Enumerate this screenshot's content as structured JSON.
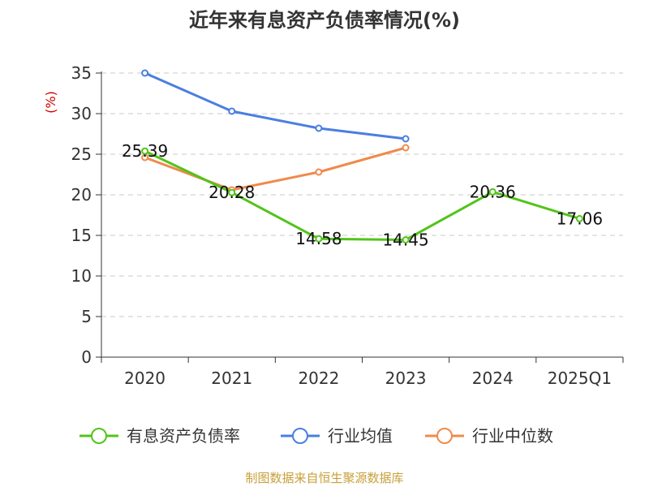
{
  "chart_data": {
    "type": "line",
    "title": "近年来有息资产负债率情况(%)",
    "ylabel": "(%)",
    "xlabel": "",
    "categories": [
      "2020",
      "2021",
      "2022",
      "2023",
      "2024",
      "2025Q1"
    ],
    "ylim": [
      0,
      35
    ],
    "yticks": [
      0,
      5,
      10,
      15,
      20,
      25,
      30,
      35
    ],
    "grid": true,
    "legend_position": "bottom",
    "series": [
      {
        "name": "有息资产负债率",
        "color": "#52c41a",
        "values": [
          25.39,
          20.28,
          14.58,
          14.45,
          20.36,
          17.06
        ],
        "data_labels": [
          "25.39",
          "20.28",
          "14.58",
          "14.45",
          "20.36",
          "17.06"
        ]
      },
      {
        "name": "行业均值",
        "color": "#4a7fe0",
        "values": [
          35.0,
          30.3,
          28.2,
          26.9,
          null,
          null
        ]
      },
      {
        "name": "行业中位数",
        "color": "#f08a4b",
        "values": [
          24.6,
          20.6,
          22.8,
          25.8,
          null,
          null
        ]
      }
    ],
    "source": "制图数据来自恒生聚源数据库"
  }
}
